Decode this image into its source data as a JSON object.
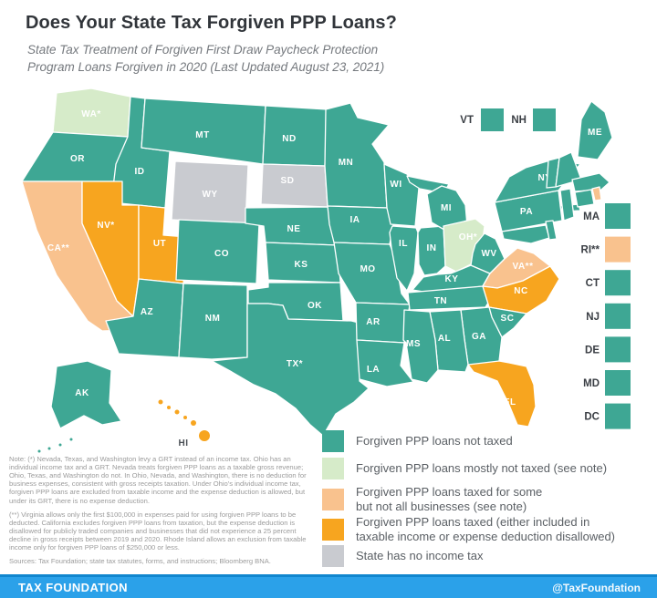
{
  "header": {
    "title": "Does Your State Tax Forgiven PPP Loans?",
    "subtitle_line1": "State Tax Treatment of Forgiven First Draw Paycheck Protection",
    "subtitle_line2": "Program Loans Forgiven in 2020 (Last Updated August 23, 2021)"
  },
  "colors": {
    "not_taxed": "#3ea794",
    "mostly_not_taxed": "#d6ebc9",
    "taxed_some": "#f9c28e",
    "taxed": "#f7a51f",
    "no_income_tax": "#c9cbd0",
    "state_label_light": "#ffffff",
    "state_label_dark": "#4a4f55",
    "footer_blue": "#2ba1e9",
    "footer_blue_dark": "#1186ce"
  },
  "map": {
    "top_legend": [
      {
        "label": "VT",
        "category": "not_taxed"
      },
      {
        "label": "NH",
        "category": "not_taxed"
      }
    ],
    "right_legend": [
      {
        "label": "MA",
        "category": "not_taxed"
      },
      {
        "label": "RI**",
        "category": "taxed_some"
      },
      {
        "label": "CT",
        "category": "not_taxed"
      },
      {
        "label": "NJ",
        "category": "not_taxed"
      },
      {
        "label": "DE",
        "category": "not_taxed"
      },
      {
        "label": "MD",
        "category": "not_taxed"
      },
      {
        "label": "DC",
        "category": "not_taxed"
      }
    ],
    "states": [
      {
        "id": "WA",
        "label": "WA*",
        "category": "mostly_not_taxed"
      },
      {
        "id": "OR",
        "label": "OR",
        "category": "not_taxed"
      },
      {
        "id": "CA",
        "label": "CA**",
        "category": "taxed_some"
      },
      {
        "id": "ID",
        "label": "ID",
        "category": "not_taxed"
      },
      {
        "id": "NV",
        "label": "NV*",
        "category": "taxed"
      },
      {
        "id": "UT",
        "label": "UT",
        "category": "taxed"
      },
      {
        "id": "AZ",
        "label": "AZ",
        "category": "not_taxed"
      },
      {
        "id": "MT",
        "label": "MT",
        "category": "not_taxed"
      },
      {
        "id": "WY",
        "label": "WY",
        "category": "no_income_tax"
      },
      {
        "id": "CO",
        "label": "CO",
        "category": "not_taxed"
      },
      {
        "id": "NM",
        "label": "NM",
        "category": "not_taxed"
      },
      {
        "id": "ND",
        "label": "ND",
        "category": "not_taxed"
      },
      {
        "id": "SD",
        "label": "SD",
        "category": "no_income_tax"
      },
      {
        "id": "NE",
        "label": "NE",
        "category": "not_taxed"
      },
      {
        "id": "KS",
        "label": "KS",
        "category": "not_taxed"
      },
      {
        "id": "OK",
        "label": "OK",
        "category": "not_taxed"
      },
      {
        "id": "TX",
        "label": "TX*",
        "category": "not_taxed"
      },
      {
        "id": "MN",
        "label": "MN",
        "category": "not_taxed"
      },
      {
        "id": "IA",
        "label": "IA",
        "category": "not_taxed"
      },
      {
        "id": "MO",
        "label": "MO",
        "category": "not_taxed"
      },
      {
        "id": "AR",
        "label": "AR",
        "category": "not_taxed"
      },
      {
        "id": "LA",
        "label": "LA",
        "category": "not_taxed"
      },
      {
        "id": "WI",
        "label": "WI",
        "category": "not_taxed"
      },
      {
        "id": "IL",
        "label": "IL",
        "category": "not_taxed"
      },
      {
        "id": "IN",
        "label": "IN",
        "category": "not_taxed"
      },
      {
        "id": "MI",
        "label": "MI",
        "category": "not_taxed"
      },
      {
        "id": "OH",
        "label": "OH*",
        "category": "mostly_not_taxed"
      },
      {
        "id": "KY",
        "label": "KY",
        "category": "not_taxed"
      },
      {
        "id": "TN",
        "label": "TN",
        "category": "not_taxed"
      },
      {
        "id": "WV",
        "label": "WV",
        "category": "not_taxed"
      },
      {
        "id": "VA",
        "label": "VA**",
        "category": "taxed_some"
      },
      {
        "id": "NC",
        "label": "NC",
        "category": "taxed"
      },
      {
        "id": "SC",
        "label": "SC",
        "category": "not_taxed"
      },
      {
        "id": "GA",
        "label": "GA",
        "category": "not_taxed"
      },
      {
        "id": "AL",
        "label": "AL",
        "category": "not_taxed"
      },
      {
        "id": "MS",
        "label": "MS",
        "category": "not_taxed"
      },
      {
        "id": "FL",
        "label": "FL",
        "category": "taxed"
      },
      {
        "id": "PA",
        "label": "PA",
        "category": "not_taxed"
      },
      {
        "id": "NY",
        "label": "NY",
        "category": "not_taxed"
      },
      {
        "id": "NJ",
        "label": "",
        "category": "not_taxed"
      },
      {
        "id": "MD",
        "label": "",
        "category": "not_taxed"
      },
      {
        "id": "DE",
        "label": "",
        "category": "not_taxed"
      },
      {
        "id": "VT",
        "label": "",
        "category": "not_taxed"
      },
      {
        "id": "NH",
        "label": "",
        "category": "not_taxed"
      },
      {
        "id": "MA",
        "label": "",
        "category": "not_taxed"
      },
      {
        "id": "CT",
        "label": "",
        "category": "not_taxed"
      },
      {
        "id": "RI",
        "label": "",
        "category": "taxed_some"
      },
      {
        "id": "ME",
        "label": "ME",
        "category": "not_taxed"
      },
      {
        "id": "AK",
        "label": "AK",
        "category": "not_taxed"
      },
      {
        "id": "HI",
        "label": "HI",
        "category": "taxed",
        "dark_label": true
      }
    ]
  },
  "legend": {
    "items": [
      {
        "category": "not_taxed",
        "lines": [
          "Forgiven PPP loans not taxed"
        ]
      },
      {
        "category": "mostly_not_taxed",
        "lines": [
          "Forgiven PPP loans mostly not taxed (see note)"
        ]
      },
      {
        "category": "taxed_some",
        "lines": [
          "Forgiven PPP loans taxed for some",
          "but not all businesses (see note)"
        ]
      },
      {
        "category": "taxed",
        "lines": [
          "Forgiven PPP loans taxed (either included in",
          "taxable income or expense deduction disallowed)"
        ]
      },
      {
        "category": "no_income_tax",
        "lines": [
          "State has no income tax"
        ]
      }
    ]
  },
  "notes": {
    "para1": "Note: (*) Nevada, Texas, and Washington levy a GRT instead of an income tax. Ohio has an individual income tax and a GRT. Nevada treats forgiven PPP loans as a taxable gross revenue; Ohio, Texas, and Washington do not. In Ohio, Nevada, and Washington, there is no deduction for business expenses, consistent with gross receipts taxation. Under Ohio's individual income tax, forgiven PPP loans are excluded from taxable income and the expense deduction is allowed, but under its GRT, there is no expense deduction.",
    "para2": "(**) Virginia allows only the first $100,000 in expenses paid for using forgiven PPP loans to be deducted. California excludes forgiven PPP loans from taxation, but the expense deduction is disallowed for publicly traded companies and businesses that did not experience a 25 percent decline in gross receipts between 2019 and 2020. Rhode Island allows an exclusion from taxable income only for forgiven PPP loans of $250,000 or less.",
    "sources": "Sources: Tax Foundation; state tax statutes, forms, and instructions; Bloomberg BNA."
  },
  "footer": {
    "brand": "TAX FOUNDATION",
    "handle": "@TaxFoundation"
  }
}
